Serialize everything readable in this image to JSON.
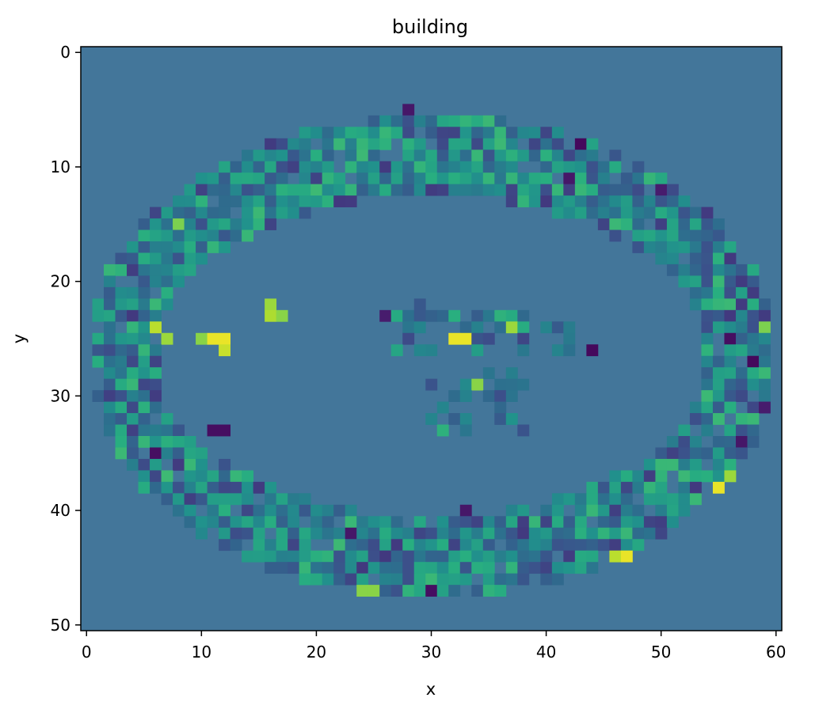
{
  "chart_data": {
    "type": "heatmap",
    "title": "building",
    "xlabel": "x",
    "ylabel": "y",
    "xticks": [
      "0",
      "10",
      "20",
      "30",
      "40",
      "50",
      "60"
    ],
    "yticks": [
      "0",
      "10",
      "20",
      "30",
      "40",
      "50"
    ],
    "xlim": [
      -0.5,
      60.5
    ],
    "ylim": [
      50.5,
      -0.5
    ],
    "grid": false,
    "colormap": "viridis",
    "background_color": "#43769a",
    "grid_size": {
      "cols": 61,
      "rows": 51
    },
    "shape": {
      "center_x": 30,
      "center_y": 26.5,
      "outer_rx": 30,
      "outer_ry": 21,
      "inner_rx": 24,
      "inner_ry": 14
    },
    "interior_patches": [
      {
        "x0": 27,
        "x1": 42,
        "y0": 22,
        "y1": 26
      },
      {
        "x0": 29,
        "x1": 38,
        "y0": 28,
        "y1": 33
      }
    ],
    "highlights": [
      {
        "x": 6,
        "y": 24,
        "value": 0.9
      },
      {
        "x": 7,
        "y": 25,
        "value": 0.85
      },
      {
        "x": 10,
        "y": 25,
        "value": 0.82
      },
      {
        "x": 11,
        "y": 25,
        "value": 0.97
      },
      {
        "x": 12,
        "y": 25,
        "value": 0.97
      },
      {
        "x": 12,
        "y": 26,
        "value": 0.92
      },
      {
        "x": 16,
        "y": 22,
        "value": 0.85
      },
      {
        "x": 16,
        "y": 23,
        "value": 0.88
      },
      {
        "x": 17,
        "y": 23,
        "value": 0.82
      },
      {
        "x": 8,
        "y": 15,
        "value": 0.8
      },
      {
        "x": 32,
        "y": 25,
        "value": 0.97
      },
      {
        "x": 33,
        "y": 25,
        "value": 0.97
      },
      {
        "x": 34,
        "y": 29,
        "value": 0.82
      },
      {
        "x": 37,
        "y": 24,
        "value": 0.85
      },
      {
        "x": 46,
        "y": 44,
        "value": 0.9
      },
      {
        "x": 47,
        "y": 44,
        "value": 0.97
      },
      {
        "x": 55,
        "y": 38,
        "value": 0.97
      },
      {
        "x": 56,
        "y": 37,
        "value": 0.85
      },
      {
        "x": 24,
        "y": 47,
        "value": 0.82
      },
      {
        "x": 25,
        "y": 47,
        "value": 0.82
      },
      {
        "x": 59,
        "y": 24,
        "value": 0.8
      },
      {
        "x": 11,
        "y": 33,
        "value": 0.05
      },
      {
        "x": 12,
        "y": 33,
        "value": 0.05
      },
      {
        "x": 6,
        "y": 35,
        "value": 0.05
      },
      {
        "x": 43,
        "y": 8,
        "value": 0.03
      },
      {
        "x": 42,
        "y": 11,
        "value": 0.08
      },
      {
        "x": 44,
        "y": 26,
        "value": 0.03
      },
      {
        "x": 58,
        "y": 27,
        "value": 0.03
      },
      {
        "x": 56,
        "y": 25,
        "value": 0.05
      },
      {
        "x": 30,
        "y": 47,
        "value": 0.05
      },
      {
        "x": 23,
        "y": 42,
        "value": 0.08
      },
      {
        "x": 28,
        "y": 5,
        "value": 0.08
      },
      {
        "x": 26,
        "y": 23,
        "value": 0.1
      },
      {
        "x": 57,
        "y": 34,
        "value": 0.08
      },
      {
        "x": 50,
        "y": 12,
        "value": 0.1
      },
      {
        "x": 33,
        "y": 40,
        "value": 0.08
      },
      {
        "x": 59,
        "y": 31,
        "value": 0.1
      }
    ]
  }
}
